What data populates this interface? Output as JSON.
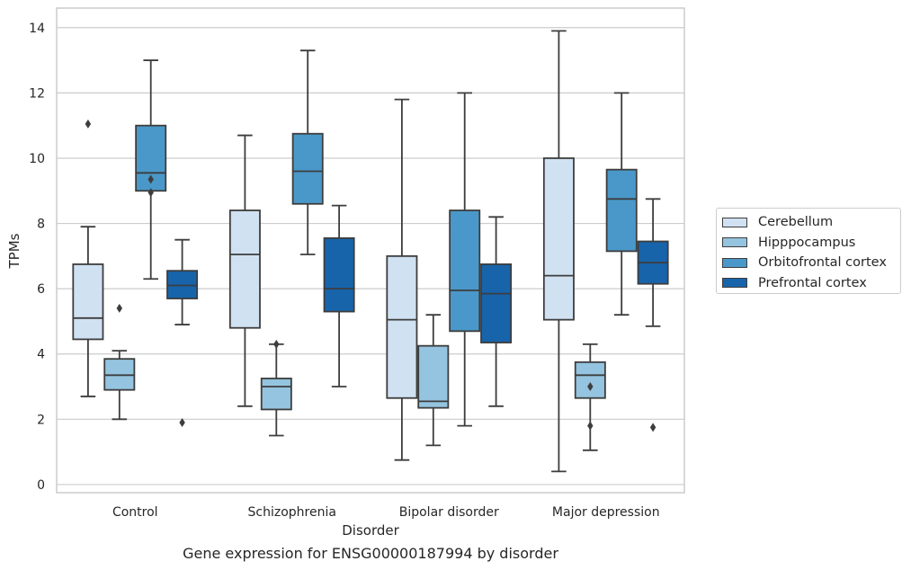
{
  "chart_data": {
    "type": "box",
    "title": "Gene expression for ENSG00000187994 by disorder",
    "xlabel": "Disorder",
    "ylabel": "TPMs",
    "ylim": [
      -0.25,
      14.6
    ],
    "yticks": [
      0,
      2,
      4,
      6,
      8,
      10,
      12,
      14
    ],
    "grid": "horizontal",
    "legend_position": "right",
    "categories": [
      "Control",
      "Schizophrenia",
      "Bipolar disorder",
      "Major depression"
    ],
    "series": [
      {
        "name": "Cerebellum",
        "color": "#d0e1f2",
        "boxes": [
          {
            "whisker_low": 2.7,
            "q1": 4.45,
            "median": 5.1,
            "q3": 6.75,
            "whisker_high": 7.9,
            "outliers": [
              11.05
            ]
          },
          {
            "whisker_low": 2.4,
            "q1": 4.8,
            "median": 7.05,
            "q3": 8.4,
            "whisker_high": 10.7,
            "outliers": []
          },
          {
            "whisker_low": 0.75,
            "q1": 2.65,
            "median": 5.05,
            "q3": 7.0,
            "whisker_high": 11.8,
            "outliers": []
          },
          {
            "whisker_low": 0.4,
            "q1": 5.05,
            "median": 6.4,
            "q3": 10.0,
            "whisker_high": 13.9,
            "outliers": []
          }
        ]
      },
      {
        "name": "Hipppocampus",
        "color": "#94c4df",
        "boxes": [
          {
            "whisker_low": 2.0,
            "q1": 2.9,
            "median": 3.35,
            "q3": 3.85,
            "whisker_high": 4.1,
            "outliers": [
              5.4
            ]
          },
          {
            "whisker_low": 1.5,
            "q1": 2.3,
            "median": 3.0,
            "q3": 3.25,
            "whisker_high": 4.3,
            "outliers": [
              4.3
            ]
          },
          {
            "whisker_low": 1.2,
            "q1": 2.35,
            "median": 2.55,
            "q3": 4.25,
            "whisker_high": 5.2,
            "outliers": []
          },
          {
            "whisker_low": 1.05,
            "q1": 2.65,
            "median": 3.35,
            "q3": 3.75,
            "whisker_high": 4.3,
            "outliers": [
              3.0,
              1.8
            ]
          }
        ]
      },
      {
        "name": "Orbitofrontal cortex",
        "color": "#4a98c9",
        "boxes": [
          {
            "whisker_low": 6.3,
            "q1": 9.0,
            "median": 9.55,
            "q3": 11.0,
            "whisker_high": 13.0,
            "outliers": [
              9.35,
              8.95
            ]
          },
          {
            "whisker_low": 7.05,
            "q1": 8.6,
            "median": 9.6,
            "q3": 10.75,
            "whisker_high": 13.3,
            "outliers": []
          },
          {
            "whisker_low": 1.8,
            "q1": 4.7,
            "median": 5.95,
            "q3": 8.4,
            "whisker_high": 12.0,
            "outliers": []
          },
          {
            "whisker_low": 5.2,
            "q1": 7.15,
            "median": 8.75,
            "q3": 9.65,
            "whisker_high": 12.0,
            "outliers": []
          }
        ]
      },
      {
        "name": "Prefrontal cortex",
        "color": "#1764ab",
        "boxes": [
          {
            "whisker_low": 4.9,
            "q1": 5.7,
            "median": 6.1,
            "q3": 6.55,
            "whisker_high": 7.5,
            "outliers": [
              1.9
            ]
          },
          {
            "whisker_low": 3.0,
            "q1": 5.3,
            "median": 6.0,
            "q3": 7.55,
            "whisker_high": 8.55,
            "outliers": []
          },
          {
            "whisker_low": 2.4,
            "q1": 4.35,
            "median": 5.85,
            "q3": 6.75,
            "whisker_high": 8.2,
            "outliers": []
          },
          {
            "whisker_low": 4.85,
            "q1": 6.15,
            "median": 6.8,
            "q3": 7.45,
            "whisker_high": 8.75,
            "outliers": [
              1.75
            ]
          }
        ]
      }
    ]
  }
}
